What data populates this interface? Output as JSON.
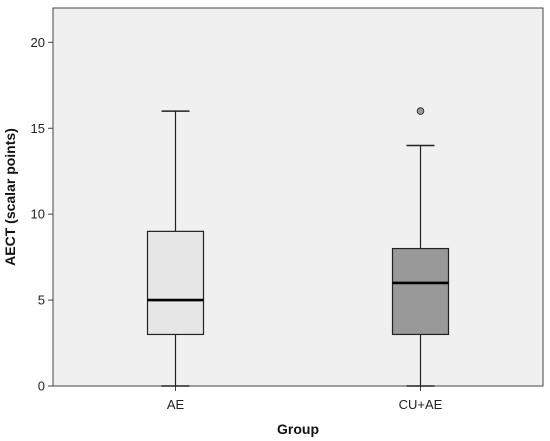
{
  "chart_data": {
    "type": "box",
    "title": "",
    "xlabel": "Group",
    "ylabel": "AECT (scalar points)",
    "ylim": [
      0,
      22
    ],
    "yticks": [
      0,
      5,
      10,
      15,
      20
    ],
    "categories": [
      "AE",
      "CU+AE"
    ],
    "boxes": [
      {
        "category": "AE",
        "min": 0,
        "q1": 3,
        "median": 5,
        "q3": 9,
        "max": 16,
        "outliers": [],
        "color": "#e6e6e6"
      },
      {
        "category": "CU+AE",
        "min": 0,
        "q1": 3,
        "median": 6,
        "q3": 8,
        "max": 14,
        "outliers": [
          16
        ],
        "color": "#999999"
      }
    ],
    "grid": false,
    "plot_background": "#f0f0f0"
  }
}
